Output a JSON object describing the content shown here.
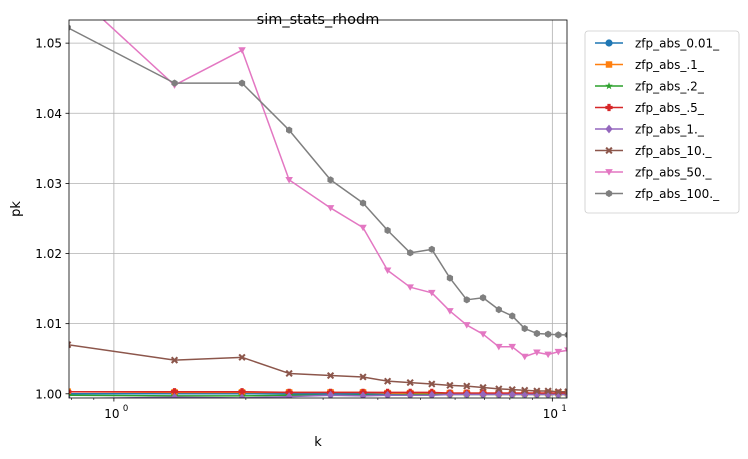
{
  "chart_data": {
    "type": "line",
    "title": "sim_stats_rhodm",
    "xlabel": "k",
    "ylabel": "pk",
    "xscale": "log",
    "xlim": [
      0.79,
      10.8
    ],
    "ylim": [
      0.9994,
      1.0533
    ],
    "x_ticks": [
      {
        "value": 1,
        "label": "10",
        "exp": "0"
      },
      {
        "value": 10,
        "label": "10",
        "exp": "1"
      }
    ],
    "y_ticks": [
      {
        "value": 1.0,
        "label": "1.00"
      },
      {
        "value": 1.01,
        "label": "1.01"
      },
      {
        "value": 1.02,
        "label": "1.02"
      },
      {
        "value": 1.03,
        "label": "1.03"
      },
      {
        "value": 1.04,
        "label": "1.04"
      },
      {
        "value": 1.05,
        "label": "1.05"
      }
    ],
    "grid": true,
    "legend_position": "outside upper right",
    "x": [
      0.785,
      1.375,
      1.96,
      2.51,
      3.12,
      3.7,
      4.21,
      4.74,
      5.31,
      5.84,
      6.38,
      6.95,
      7.55,
      8.1,
      8.65,
      9.22,
      9.78,
      10.32,
      10.85
    ],
    "series": [
      {
        "name": "zfp_abs_0.01_",
        "color": "#1f77b4",
        "marker": "circle",
        "values": [
          1.0,
          1.0,
          1.0,
          1.0,
          1.0,
          1.0,
          1.0,
          1.0,
          1.0,
          1.0,
          1.0,
          1.0,
          1.0,
          1.0,
          1.0,
          1.0,
          1.0,
          1.0,
          1.0
        ]
      },
      {
        "name": "zfp_abs_.1_",
        "color": "#ff7f0e",
        "marker": "square",
        "values": [
          1.0003,
          1.0002,
          1.0002,
          1.0002,
          1.0002,
          1.0002,
          1.0001,
          1.0001,
          1.0001,
          1.0001,
          1.0001,
          1.0001,
          1.0001,
          1.0001,
          1.0001,
          1.0001,
          1.0001,
          1.0001,
          1.0001
        ]
      },
      {
        "name": "zfp_abs_.2_",
        "color": "#2ca02c",
        "marker": "star",
        "values": [
          0.9998,
          0.9997,
          0.9997,
          0.9998,
          0.9998,
          0.9998,
          0.9998,
          0.9999,
          0.9999,
          0.9999,
          0.9999,
          0.9999,
          0.9999,
          0.9999,
          0.9999,
          0.9999,
          0.9999,
          0.9999,
          0.9999
        ]
      },
      {
        "name": "zfp_abs_.5_",
        "color": "#d62728",
        "marker": "plus",
        "values": [
          1.0003,
          1.0003,
          1.0003,
          1.0002,
          1.0002,
          1.0002,
          1.0002,
          1.0002,
          1.0002,
          1.0001,
          1.0001,
          1.0001,
          1.0001,
          1.0001,
          1.0001,
          1.0001,
          1.0001,
          1.0001,
          1.0001
        ]
      },
      {
        "name": "zfp_abs_1._",
        "color": "#9467bd",
        "marker": "diamond",
        "values": [
          0.9993,
          0.9995,
          0.9994,
          0.9996,
          0.9998,
          0.9997,
          0.9998,
          0.9998,
          0.9998,
          0.9999,
          0.9999,
          0.9999,
          0.9999,
          0.9999,
          0.9999,
          0.9999,
          0.9999,
          0.9999,
          0.9999
        ]
      },
      {
        "name": "zfp_abs_10._",
        "color": "#8c564b",
        "marker": "x",
        "values": [
          1.007,
          1.0048,
          1.0052,
          1.0029,
          1.0026,
          1.0024,
          1.0018,
          1.0016,
          1.0014,
          1.0012,
          1.0011,
          1.0009,
          1.0007,
          1.0006,
          1.0005,
          1.0004,
          1.0004,
          1.0003,
          1.0003
        ]
      },
      {
        "name": "zfp_abs_50._",
        "color": "#e377c2",
        "marker": "triangle-down",
        "values": [
          1.058,
          1.044,
          1.049,
          1.0305,
          1.0265,
          1.0237,
          1.0176,
          1.0152,
          1.0144,
          1.0118,
          1.0098,
          1.0085,
          1.0067,
          1.0067,
          1.0053,
          1.0059,
          1.0056,
          1.006,
          1.0062
        ]
      },
      {
        "name": "zfp_abs_100._",
        "color": "#7f7f7f",
        "marker": "hexagon",
        "values": [
          1.0522,
          1.0443,
          1.0443,
          1.0376,
          1.0305,
          1.0272,
          1.0233,
          1.0201,
          1.0206,
          1.0165,
          1.0134,
          1.0137,
          1.012,
          1.0111,
          1.0093,
          1.0086,
          1.0085,
          1.0084,
          1.0084
        ]
      }
    ]
  }
}
